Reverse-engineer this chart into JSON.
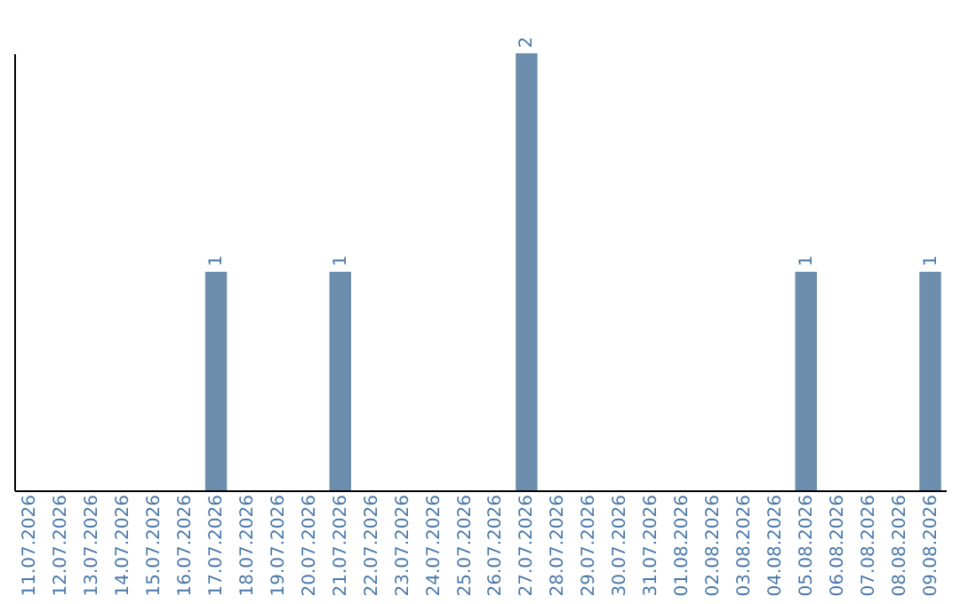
{
  "chart_data": {
    "type": "bar",
    "categories": [
      "11.07.2026",
      "12.07.2026",
      "13.07.2026",
      "14.07.2026",
      "15.07.2026",
      "16.07.2026",
      "17.07.2026",
      "18.07.2026",
      "19.07.2026",
      "20.07.2026",
      "21.07.2026",
      "22.07.2026",
      "23.07.2026",
      "24.07.2026",
      "25.07.2026",
      "26.07.2026",
      "27.07.2026",
      "28.07.2026",
      "29.07.2026",
      "30.07.2026",
      "31.07.2026",
      "01.08.2026",
      "02.08.2026",
      "03.08.2026",
      "04.08.2026",
      "05.08.2026",
      "06.08.2026",
      "07.08.2026",
      "08.08.2026",
      "09.08.2026"
    ],
    "values": [
      0,
      0,
      0,
      0,
      0,
      0,
      1,
      0,
      0,
      0,
      1,
      0,
      0,
      0,
      0,
      0,
      2,
      0,
      0,
      0,
      0,
      0,
      0,
      0,
      0,
      1,
      0,
      0,
      0,
      1
    ],
    "value_labels": [
      null,
      null,
      null,
      null,
      null,
      null,
      "1",
      null,
      null,
      null,
      "1",
      null,
      null,
      null,
      null,
      null,
      "2",
      null,
      null,
      null,
      null,
      null,
      null,
      null,
      null,
      "1",
      null,
      null,
      null,
      "1"
    ],
    "color": "#6c8dab",
    "grid": false,
    "tick_labels": "x"
  }
}
